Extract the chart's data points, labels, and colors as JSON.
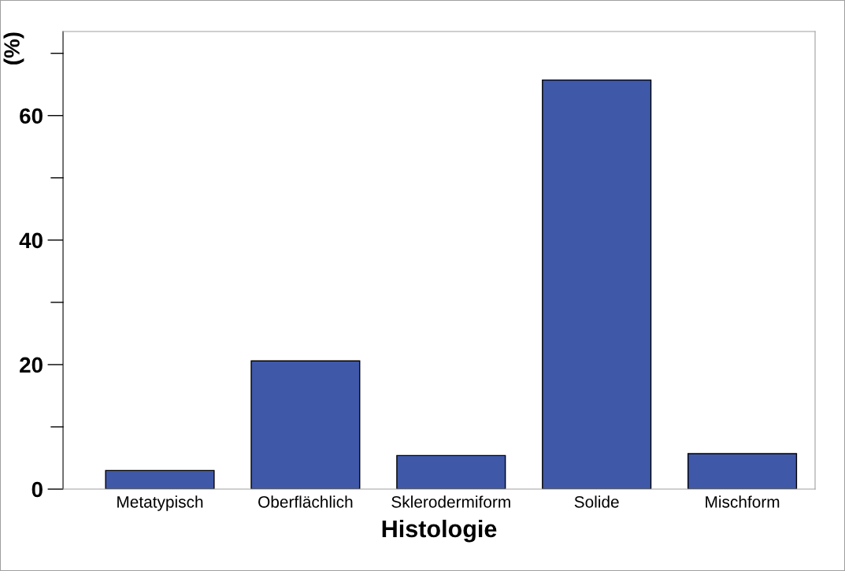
{
  "chart_data": {
    "type": "bar",
    "xlabel": "Histologie",
    "ylabel": "(%)",
    "categories": [
      "Metatypisch",
      "Oberflächlich",
      "Sklerodermiform",
      "Solide",
      "Mischform"
    ],
    "values": [
      3.0,
      20.6,
      5.4,
      65.7,
      5.7
    ],
    "color": "#3f58a8",
    "ylim": [
      0,
      73.5
    ],
    "yticks": [
      0,
      {
        "value": 10,
        "label": null
      },
      20,
      {
        "value": 30,
        "label": null
      },
      40,
      {
        "value": 50,
        "label": null
      },
      60,
      {
        "value": 70,
        "label": null
      }
    ],
    "grid": false,
    "legend": false
  }
}
